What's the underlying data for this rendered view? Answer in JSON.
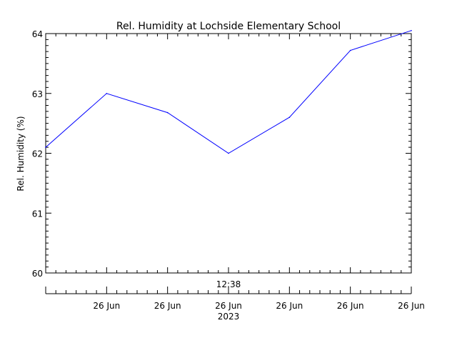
{
  "chart_data": {
    "type": "line",
    "title": "Rel. Humidity at Lochside Elementary School",
    "ylabel": "Rel. Humidity (%)",
    "ylim": [
      60,
      64
    ],
    "y_ticks": [
      60,
      61,
      62,
      63,
      64
    ],
    "y_minor_per_major": 10,
    "x_center_label": "12:38",
    "x_year_label": "2023",
    "x_tick_labels": [
      "26 Jun",
      "26 Jun",
      "26 Jun",
      "26 Jun",
      "26 Jun",
      "26 Jun"
    ],
    "x_minor_per_major": 6,
    "line_color": "#0000ff",
    "series": [
      {
        "values": [
          62.1,
          63.0,
          62.68,
          62.0,
          62.6,
          63.72,
          64.05
        ]
      }
    ]
  }
}
